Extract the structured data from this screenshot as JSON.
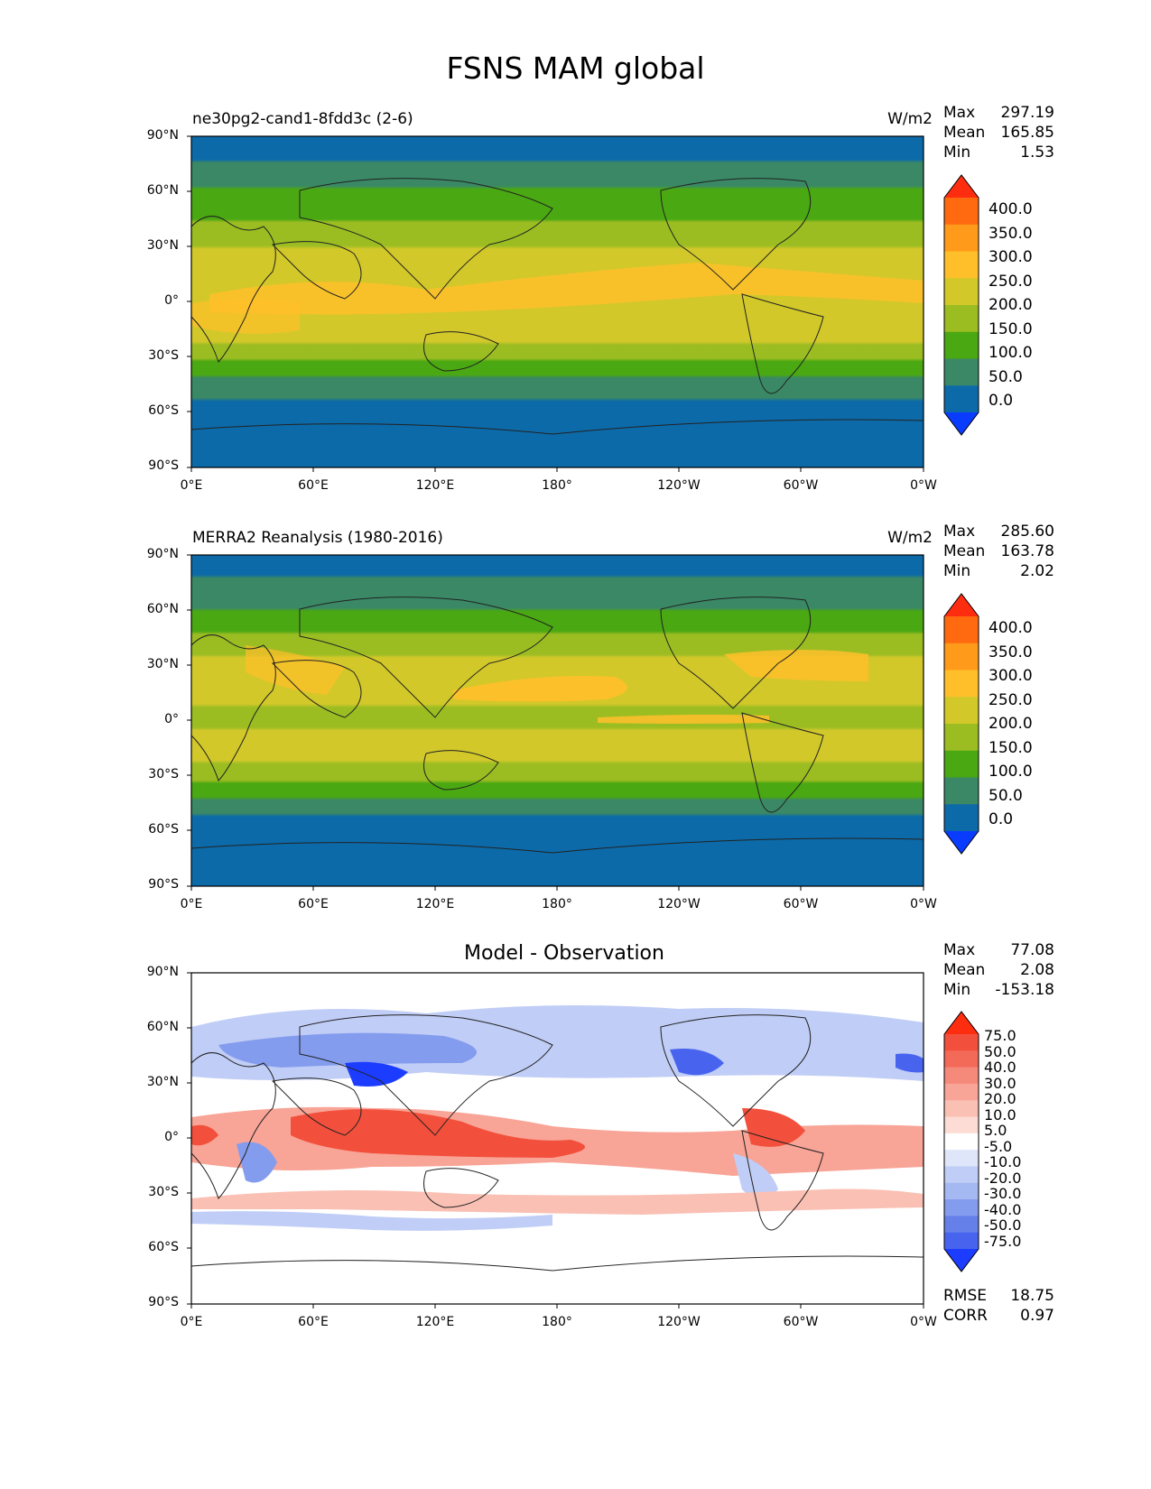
{
  "figure_title": "FSNS MAM global",
  "panels": [
    {
      "title": "ne30pg2-cand1-8fdd3c (2-6)",
      "units": "W/m2",
      "stats": [
        {
          "label": "Max",
          "value": "297.19"
        },
        {
          "label": "Mean",
          "value": "165.85"
        },
        {
          "label": "Min",
          "value": "1.53"
        }
      ],
      "colorbar": {
        "labels": [
          "400.0",
          "350.0",
          "300.0",
          "250.0",
          "200.0",
          "150.0",
          "100.0",
          "50.0",
          "0.0"
        ],
        "colors": [
          "#ff2d10",
          "#ff6a10",
          "#ff9a1a",
          "#ffbf2a",
          "#d2c82a",
          "#9cbd22",
          "#4aa812",
          "#3a8866",
          "#0c6aa8",
          "#0a3cff"
        ]
      }
    },
    {
      "title": "MERRA2 Reanalysis (1980-2016)",
      "units": "W/m2",
      "stats": [
        {
          "label": "Max",
          "value": "285.60"
        },
        {
          "label": "Mean",
          "value": "163.78"
        },
        {
          "label": "Min",
          "value": "2.02"
        }
      ],
      "colorbar": {
        "labels": [
          "400.0",
          "350.0",
          "300.0",
          "250.0",
          "200.0",
          "150.0",
          "100.0",
          "50.0",
          "0.0"
        ],
        "colors": [
          "#ff2d10",
          "#ff6a10",
          "#ff9a1a",
          "#ffbf2a",
          "#d2c82a",
          "#9cbd22",
          "#4aa812",
          "#3a8866",
          "#0c6aa8",
          "#0a3cff"
        ]
      }
    },
    {
      "title": "Model - Observation",
      "stats": [
        {
          "label": "Max",
          "value": "77.08"
        },
        {
          "label": "Mean",
          "value": "2.08"
        },
        {
          "label": "Min",
          "value": "-153.18"
        }
      ],
      "colorbar": {
        "labels": [
          "75.0",
          "50.0",
          "40.0",
          "30.0",
          "20.0",
          "10.0",
          "5.0",
          "-5.0",
          "-10.0",
          "-20.0",
          "-30.0",
          "-40.0",
          "-50.0",
          "-75.0"
        ],
        "colors": [
          "#ff2d10",
          "#f2503c",
          "#f46a58",
          "#f68a7a",
          "#f8a496",
          "#fac0b4",
          "#fcdcd4",
          "#ffffff",
          "#dfe6fa",
          "#c0cdf6",
          "#a4b8f2",
          "#849cee",
          "#6680ea",
          "#4864ee",
          "#1c3cff"
        ]
      },
      "metrics": [
        {
          "label": "RMSE",
          "value": "18.75"
        },
        {
          "label": "CORR",
          "value": "0.97"
        }
      ]
    }
  ],
  "axes": {
    "y_ticks": [
      "90°N",
      "60°N",
      "30°N",
      "0°",
      "30°S",
      "60°S",
      "90°S"
    ],
    "x_ticks": [
      "0°E",
      "60°E",
      "120°E",
      "180°",
      "120°W",
      "60°W",
      "0°W"
    ]
  }
}
